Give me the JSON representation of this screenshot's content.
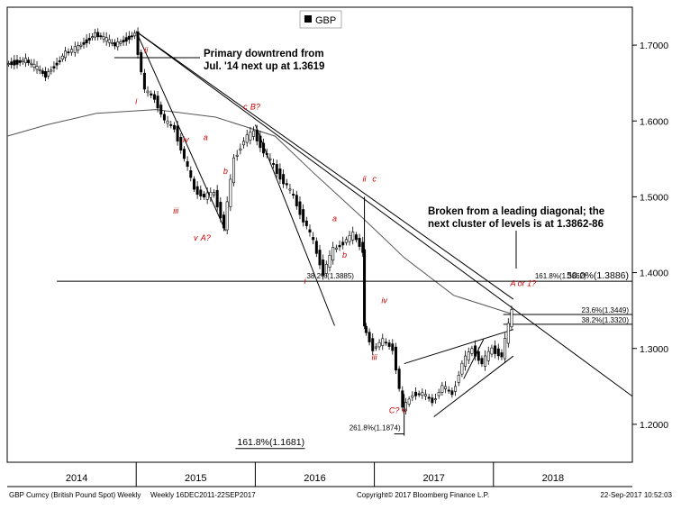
{
  "chart_data": {
    "type": "candlestick",
    "legend": {
      "label": "GBP",
      "swatch_color": "#000000",
      "placement": "top-center"
    },
    "y_axis": {
      "side": "right",
      "ylim": [
        1.15,
        1.75
      ],
      "ticks": [
        {
          "value": 1.7,
          "label": "1.7000"
        },
        {
          "value": 1.6,
          "label": "1.6000"
        },
        {
          "value": 1.5,
          "label": "1.5000"
        },
        {
          "value": 1.4,
          "label": "1.4000"
        },
        {
          "value": 1.3,
          "label": "1.3000"
        },
        {
          "value": 1.2,
          "label": "1.2000"
        }
      ]
    },
    "x_axis": {
      "xlim": [
        "2013-06",
        "2018-09"
      ],
      "year_labels": [
        {
          "x": "2014-01",
          "label": "2014"
        },
        {
          "x": "2015-01",
          "label": "2015"
        },
        {
          "x": "2016-01",
          "label": "2016"
        },
        {
          "x": "2017-01",
          "label": "2017"
        },
        {
          "x": "2018-01",
          "label": "2018"
        }
      ],
      "dividers": [
        "2014-07",
        "2015-07",
        "2016-07",
        "2017-07"
      ]
    },
    "price_path": [
      {
        "x": "2013-06",
        "y": 1.675
      },
      {
        "x": "2013-08",
        "y": 1.68
      },
      {
        "x": "2013-10",
        "y": 1.66
      },
      {
        "x": "2013-12",
        "y": 1.69
      },
      {
        "x": "2014-01",
        "y": 1.695
      },
      {
        "x": "2014-03",
        "y": 1.715
      },
      {
        "x": "2014-05",
        "y": 1.7
      },
      {
        "x": "2014-07",
        "y": 1.715
      },
      {
        "x": "2014-08",
        "y": 1.64
      },
      {
        "x": "2014-09",
        "y": 1.63
      },
      {
        "x": "2014-10",
        "y": 1.6
      },
      {
        "x": "2014-11",
        "y": 1.59
      },
      {
        "x": "2014-12",
        "y": 1.55
      },
      {
        "x": "2015-01",
        "y": 1.51
      },
      {
        "x": "2015-02",
        "y": 1.5
      },
      {
        "x": "2015-03",
        "y": 1.505
      },
      {
        "x": "2015-04",
        "y": 1.46
      },
      {
        "x": "2015-05",
        "y": 1.55
      },
      {
        "x": "2015-06",
        "y": 1.575
      },
      {
        "x": "2015-07",
        "y": 1.585
      },
      {
        "x": "2015-08",
        "y": 1.56
      },
      {
        "x": "2015-09",
        "y": 1.54
      },
      {
        "x": "2015-10",
        "y": 1.52
      },
      {
        "x": "2015-11",
        "y": 1.5
      },
      {
        "x": "2015-12",
        "y": 1.47
      },
      {
        "x": "2016-01",
        "y": 1.44
      },
      {
        "x": "2016-02",
        "y": 1.4
      },
      {
        "x": "2016-03",
        "y": 1.43
      },
      {
        "x": "2016-04",
        "y": 1.44
      },
      {
        "x": "2016-05",
        "y": 1.45
      },
      {
        "x": "2016-06",
        "y": 1.43
      },
      {
        "x": "2016-06",
        "y": 1.33
      },
      {
        "x": "2016-07",
        "y": 1.3
      },
      {
        "x": "2016-08",
        "y": 1.31
      },
      {
        "x": "2016-09",
        "y": 1.3
      },
      {
        "x": "2016-10",
        "y": 1.22
      },
      {
        "x": "2016-11",
        "y": 1.24
      },
      {
        "x": "2016-12",
        "y": 1.24
      },
      {
        "x": "2017-01",
        "y": 1.23
      },
      {
        "x": "2017-02",
        "y": 1.25
      },
      {
        "x": "2017-03",
        "y": 1.24
      },
      {
        "x": "2017-04",
        "y": 1.28
      },
      {
        "x": "2017-05",
        "y": 1.3
      },
      {
        "x": "2017-06",
        "y": 1.28
      },
      {
        "x": "2017-07",
        "y": 1.3
      },
      {
        "x": "2017-08",
        "y": 1.29
      },
      {
        "x": "2017-09",
        "y": 1.35
      }
    ],
    "moving_average": [
      {
        "x": "2013-06",
        "y": 1.58
      },
      {
        "x": "2013-10",
        "y": 1.595
      },
      {
        "x": "2014-03",
        "y": 1.61
      },
      {
        "x": "2014-09",
        "y": 1.615
      },
      {
        "x": "2015-03",
        "y": 1.605
      },
      {
        "x": "2015-09",
        "y": 1.58
      },
      {
        "x": "2016-01",
        "y": 1.53
      },
      {
        "x": "2016-06",
        "y": 1.47
      },
      {
        "x": "2016-10",
        "y": 1.42
      },
      {
        "x": "2017-03",
        "y": 1.37
      },
      {
        "x": "2017-09",
        "y": 1.345
      }
    ],
    "trendlines": [
      {
        "name": "primary-downtrend",
        "from": {
          "x": "2014-07",
          "y": 1.718
        },
        "to": {
          "x": "2018-09",
          "y": 1.237
        }
      },
      {
        "name": "2014-wave-line",
        "from": {
          "x": "2014-07",
          "y": 1.718
        },
        "to": {
          "x": "2017-09",
          "y": 1.365
        }
      },
      {
        "name": "steep-2014-line",
        "from": {
          "x": "2014-07",
          "y": 1.718
        },
        "to": {
          "x": "2015-04",
          "y": 1.455
        }
      },
      {
        "name": "2015-downtrend",
        "from": {
          "x": "2015-07",
          "y": 1.595
        },
        "to": {
          "x": "2016-03",
          "y": 1.33
        }
      },
      {
        "name": "diagonal-upper",
        "from": {
          "x": "2016-10",
          "y": 1.28
        },
        "to": {
          "x": "2017-09",
          "y": 1.325
        }
      },
      {
        "name": "diagonal-lower",
        "from": {
          "x": "2017-01",
          "y": 1.21
        },
        "to": {
          "x": "2017-09",
          "y": 1.29
        }
      },
      {
        "name": "leading-diagonal-upper",
        "from": {
          "x": "2017-04",
          "y": 1.26
        },
        "to": {
          "x": "2017-06",
          "y": 1.312
        }
      },
      {
        "name": "brexit-drop-vertical",
        "from": {
          "x": "2016-06",
          "y": 1.5
        },
        "to": {
          "x": "2016-06",
          "y": 1.33
        }
      },
      {
        "name": "low-marker",
        "from": {
          "x": "2016-10",
          "y": 1.24
        },
        "to": {
          "x": "2016-10",
          "y": 1.185
        }
      }
    ],
    "levels": [
      {
        "name": "level-1-3886",
        "value": 1.3886,
        "from": "2013-11",
        "to": "2018-09",
        "labels": [
          "38.2%(1.3885)",
          "161.8%(1.3862)",
          "50.0%(1.3886)"
        ]
      },
      {
        "name": "level-1-3449",
        "value": 1.3449,
        "from": "2017-08",
        "to": "2018-09",
        "labels": [
          "23.6%(1.3449)"
        ]
      },
      {
        "name": "level-1-3320",
        "value": 1.332,
        "from": "2017-08",
        "to": "2018-09",
        "labels": [
          "38.2%(1.3320)"
        ]
      },
      {
        "name": "level-1-1874",
        "value": 1.1874,
        "from": "2016-09",
        "to": "2016-10",
        "labels": [
          "261.8%(1.1874)"
        ]
      },
      {
        "name": "level-1-1681",
        "value": 1.1681,
        "from": "2015-05",
        "to": "2015-12",
        "labels": [
          "161.8%(1.1681)"
        ]
      }
    ],
    "annotations": [
      {
        "text": "Primary downtrend from",
        "color": "#000000"
      },
      {
        "text": "Jul. '14 next up at 1.3619",
        "color": "#000000"
      },
      {
        "text": "Broken from a leading diagonal; the",
        "color": "#000000"
      },
      {
        "text": "next cluster of levels is at 1.3862-86",
        "color": "#000000"
      }
    ],
    "wave_labels": [
      {
        "text": "i",
        "x": "2014-07",
        "y": 1.622
      },
      {
        "text": "ii",
        "x": "2014-08",
        "y": 1.69
      },
      {
        "text": "c",
        "x": "2015-06",
        "y": 1.615
      },
      {
        "text": "B?",
        "x": "2015-07",
        "y": 1.615
      },
      {
        "text": "iv",
        "x": "2014-12",
        "y": 1.572
      },
      {
        "text": "a",
        "x": "2015-02",
        "y": 1.575
      },
      {
        "text": "b",
        "x": "2015-04",
        "y": 1.53
      },
      {
        "text": "iii",
        "x": "2014-11",
        "y": 1.478
      },
      {
        "text": "v",
        "x": "2015-01",
        "y": 1.442
      },
      {
        "text": "A?",
        "x": "2015-02",
        "y": 1.442
      },
      {
        "text": "ii",
        "x": "2016-06",
        "y": 1.52
      },
      {
        "text": "c",
        "x": "2016-07",
        "y": 1.52
      },
      {
        "text": "a",
        "x": "2016-03",
        "y": 1.468
      },
      {
        "text": "b",
        "x": "2016-04",
        "y": 1.42
      },
      {
        "text": "i",
        "x": "2015-12",
        "y": 1.385
      },
      {
        "text": "iv",
        "x": "2016-08",
        "y": 1.36
      },
      {
        "text": "iii",
        "x": "2016-07",
        "y": 1.285
      },
      {
        "text": "C?",
        "x": "2016-09",
        "y": 1.215
      },
      {
        "text": "v",
        "x": "2016-10",
        "y": 1.215
      },
      {
        "text": "A or 1?",
        "x": "2017-10",
        "y": 1.382
      }
    ],
    "footer": {
      "left": "GBP Curncy (British Pound Spot) Weekly",
      "range": "Weekly 16DEC2011-22SEP2017",
      "center": "Copyright© 2017 Bloomberg Finance L.P.",
      "right": "22-Sep-2017 10:52:03"
    },
    "colors": {
      "price": "#000000",
      "moving_average": "#555555",
      "trendline": "#000000",
      "wave_label": "#cc0000",
      "grid": "#000000"
    }
  }
}
